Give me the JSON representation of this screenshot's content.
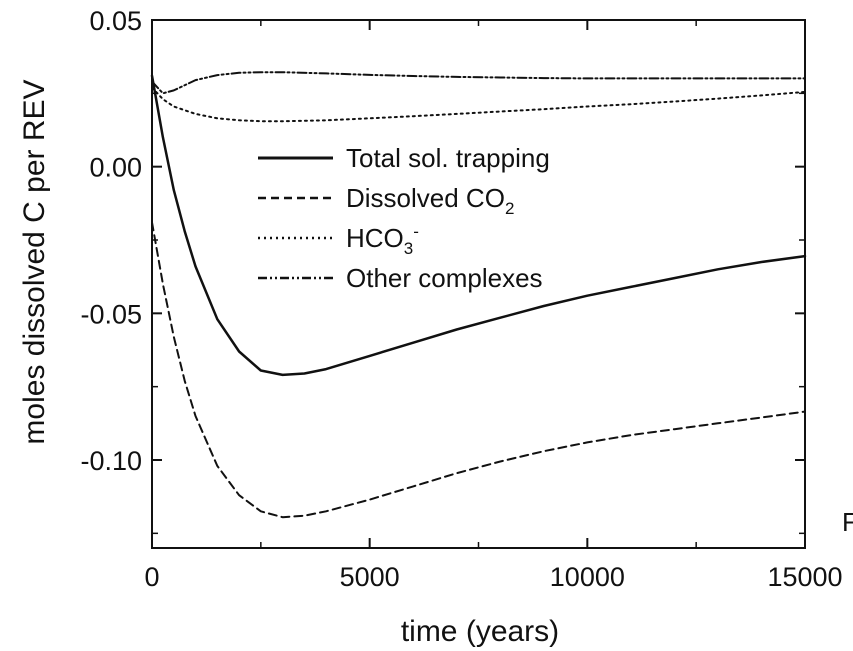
{
  "chart_data": {
    "type": "line",
    "xlabel": "time (years)",
    "ylabel": "moles dissolved C per REV",
    "xlim": [
      0,
      15000
    ],
    "ylim": [
      -0.13,
      0.05
    ],
    "x_ticks": [
      "0",
      "5000",
      "10000",
      "15000"
    ],
    "y_ticks": [
      "0.05",
      "0.00",
      "-0.05",
      "-0.10"
    ],
    "legend_position": "center",
    "edge_glyph": "F",
    "series": [
      {
        "name": "Total sol. trapping",
        "style": "solid",
        "color": "#111111",
        "x": [
          0,
          250,
          500,
          750,
          1000,
          1500,
          2000,
          2500,
          3000,
          3500,
          4000,
          5000,
          6000,
          7000,
          8000,
          9000,
          10000,
          11000,
          12000,
          13000,
          14000,
          15000
        ],
        "y": [
          0.031,
          0.01,
          -0.008,
          -0.022,
          -0.034,
          -0.052,
          -0.063,
          -0.0695,
          -0.071,
          -0.0705,
          -0.069,
          -0.0645,
          -0.06,
          -0.0555,
          -0.0515,
          -0.0475,
          -0.044,
          -0.041,
          -0.038,
          -0.035,
          -0.0325,
          -0.0305
        ]
      },
      {
        "name": "Dissolved CO",
        "name_sub": "2",
        "style": "dashed",
        "color": "#111111",
        "x": [
          0,
          250,
          500,
          750,
          1000,
          1500,
          2000,
          2500,
          3000,
          3500,
          4000,
          5000,
          6000,
          7000,
          8000,
          9000,
          10000,
          11000,
          12000,
          13000,
          14000,
          15000
        ],
        "y": [
          -0.019,
          -0.04,
          -0.058,
          -0.073,
          -0.085,
          -0.102,
          -0.112,
          -0.1175,
          -0.1195,
          -0.119,
          -0.1175,
          -0.1135,
          -0.109,
          -0.1045,
          -0.1005,
          -0.097,
          -0.094,
          -0.0915,
          -0.0895,
          -0.0875,
          -0.0855,
          -0.0835
        ]
      },
      {
        "name": "HCO",
        "name_sub": "3",
        "name_sup": "-",
        "style": "dotted",
        "color": "#111111",
        "x": [
          0,
          250,
          500,
          1000,
          1500,
          2000,
          2500,
          3000,
          4000,
          5000,
          6000,
          7000,
          8000,
          9000,
          10000,
          11000,
          12000,
          13000,
          14000,
          15000
        ],
        "y": [
          0.027,
          0.023,
          0.0205,
          0.018,
          0.0165,
          0.0158,
          0.0155,
          0.0155,
          0.0158,
          0.0165,
          0.0172,
          0.018,
          0.0188,
          0.0196,
          0.0205,
          0.0213,
          0.0222,
          0.0232,
          0.0243,
          0.0255
        ]
      },
      {
        "name": "Other complexes",
        "style": "dashdotdot",
        "color": "#111111",
        "x": [
          0,
          250,
          500,
          1000,
          1500,
          2000,
          2500,
          3000,
          4000,
          5000,
          6000,
          7000,
          8000,
          9000,
          10000,
          11000,
          12000,
          13000,
          14000,
          15000
        ],
        "y": [
          0.029,
          0.025,
          0.026,
          0.0295,
          0.0312,
          0.032,
          0.0322,
          0.0322,
          0.0318,
          0.0313,
          0.0309,
          0.0306,
          0.0304,
          0.0302,
          0.0301,
          0.0301,
          0.0301,
          0.0301,
          0.0301,
          0.0301
        ]
      }
    ]
  }
}
